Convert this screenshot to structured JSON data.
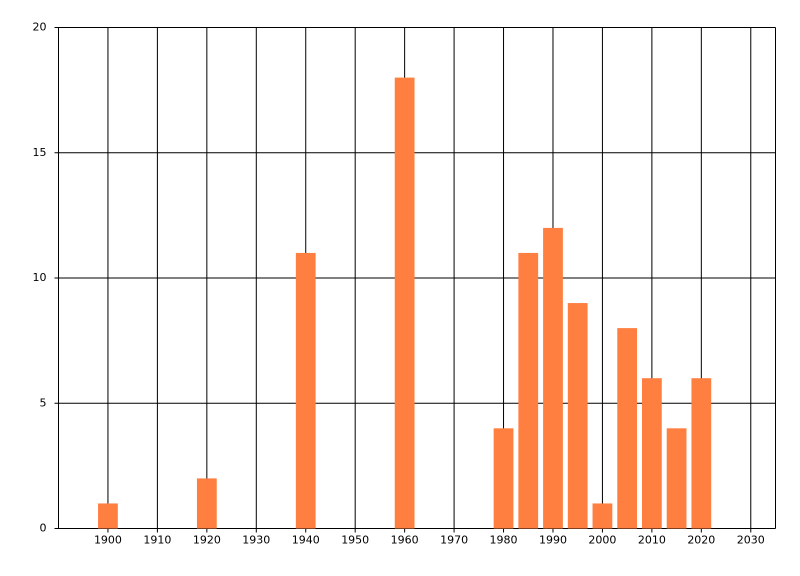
{
  "chart_data": {
    "type": "bar",
    "x": [
      1900,
      1920,
      1940,
      1960,
      1980,
      1985,
      1990,
      1995,
      2000,
      2005,
      2010,
      2015,
      2020
    ],
    "values": [
      1,
      2,
      11,
      18,
      4,
      11,
      12,
      9,
      1,
      8,
      6,
      4,
      6
    ],
    "color": "#ff7f41",
    "xlim": [
      1890,
      2035
    ],
    "xticks": [
      1900,
      1910,
      1920,
      1930,
      1940,
      1950,
      1960,
      1970,
      1980,
      1990,
      2000,
      2010,
      2020,
      2030
    ],
    "ylim": [
      0,
      20
    ],
    "yticks": [
      0,
      5,
      10,
      15,
      20
    ],
    "grid": true
  }
}
